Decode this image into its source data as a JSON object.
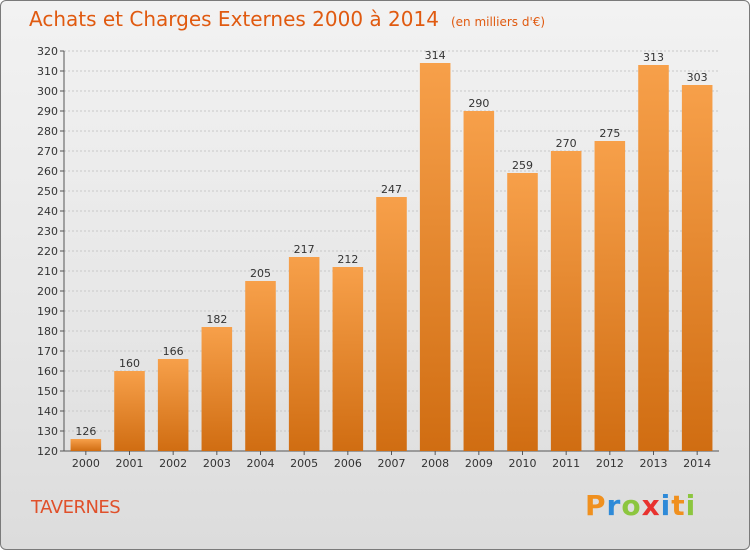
{
  "chart_data": {
    "type": "bar",
    "title": "Achats et Charges Externes 2000 à 2014",
    "subtitle": "(en milliers d'€)",
    "categories": [
      "2000",
      "2001",
      "2002",
      "2003",
      "2004",
      "2005",
      "2006",
      "2007",
      "2008",
      "2009",
      "2010",
      "2011",
      "2012",
      "2013",
      "2014"
    ],
    "values": [
      126,
      160,
      166,
      182,
      205,
      217,
      212,
      247,
      314,
      290,
      259,
      270,
      275,
      313,
      303
    ],
    "ylim": [
      120,
      320
    ],
    "yticks": [
      120,
      130,
      140,
      150,
      160,
      170,
      180,
      190,
      200,
      210,
      220,
      230,
      240,
      250,
      260,
      270,
      280,
      290,
      300,
      310,
      320
    ],
    "grid": true,
    "bar_color_top": "#f7a04a",
    "bar_color_bottom": "#d06d12"
  },
  "commune": "TAVERNES",
  "logo": {
    "text": "Proxiti",
    "letters": [
      {
        "ch": "P",
        "color": "#f0901e"
      },
      {
        "ch": "r",
        "color": "#2e8ad8"
      },
      {
        "ch": "o",
        "color": "#8cc63f"
      },
      {
        "ch": "x",
        "color": "#e8322f"
      },
      {
        "ch": "i",
        "color": "#2e8ad8"
      },
      {
        "ch": "t",
        "color": "#f0901e"
      },
      {
        "ch": "i",
        "color": "#8cc63f"
      }
    ]
  }
}
